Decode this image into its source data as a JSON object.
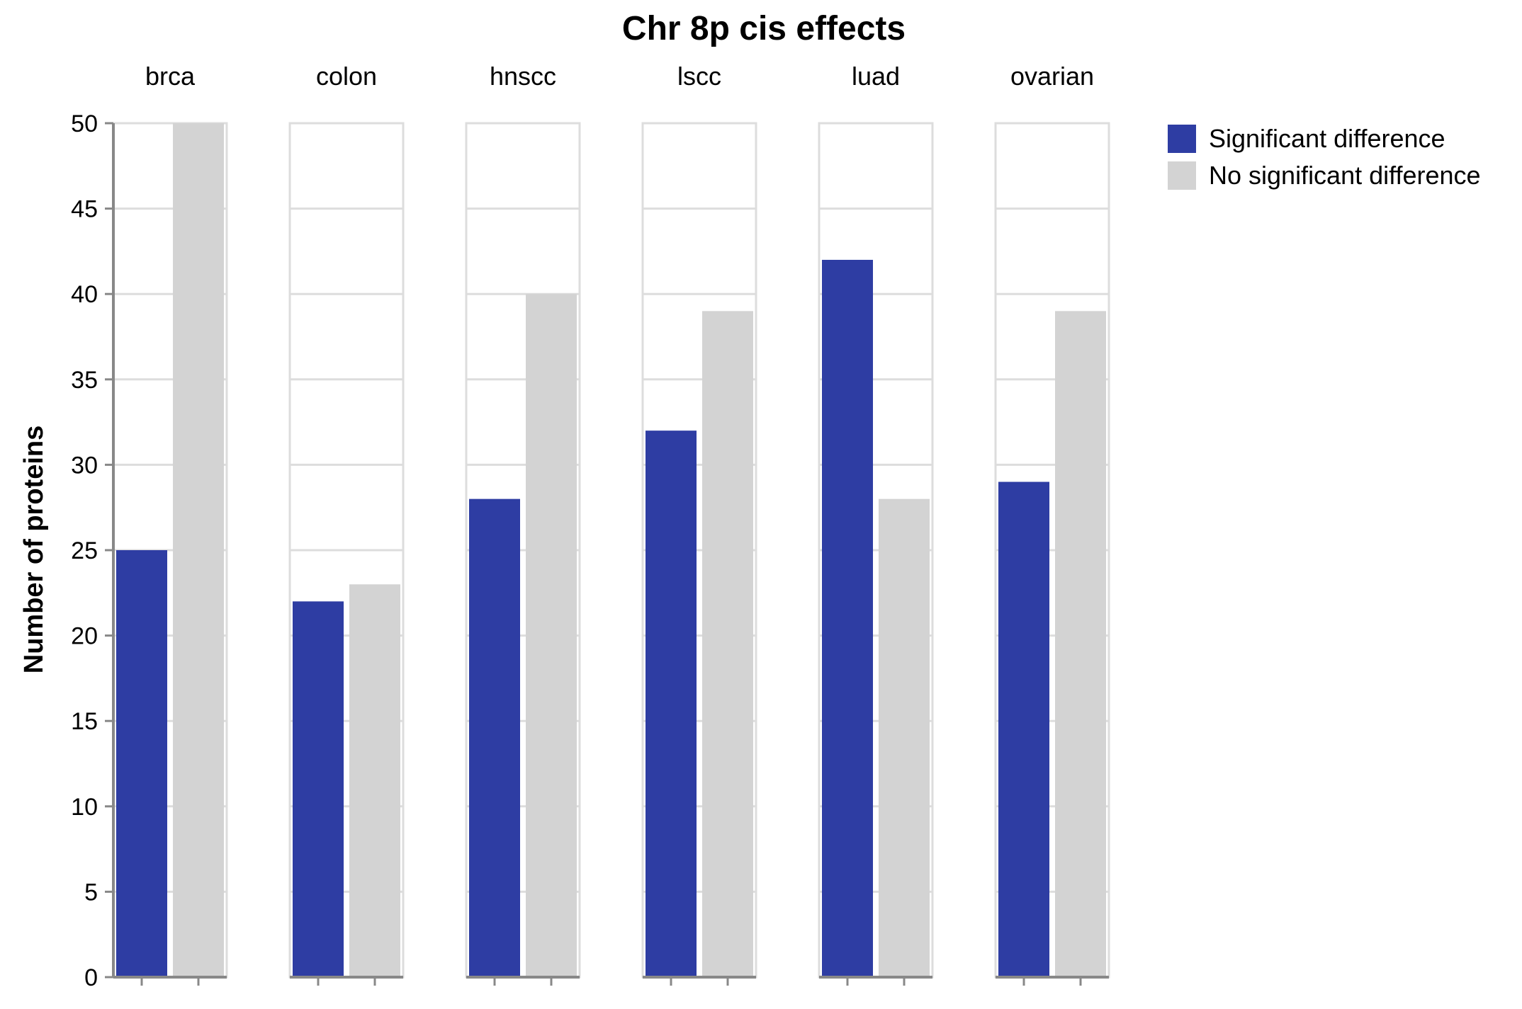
{
  "chart_data": {
    "type": "bar",
    "title": "Chr 8p cis effects",
    "ylabel": "Number of proteins",
    "xlabel": "",
    "ylim": [
      0,
      50
    ],
    "yticks": [
      0,
      5,
      10,
      15,
      20,
      25,
      30,
      35,
      40,
      45,
      50
    ],
    "grid": true,
    "legend_position": "top-right",
    "facets": [
      "brca",
      "colon",
      "hnscc",
      "lscc",
      "luad",
      "ovarian"
    ],
    "series": [
      {
        "name": "Significant difference",
        "color": "#2e3da3",
        "values": [
          25,
          22,
          28,
          32,
          42,
          29
        ]
      },
      {
        "name": "No significant difference",
        "color": "#d3d3d3",
        "values": [
          50,
          23,
          40,
          39,
          28,
          39
        ]
      }
    ]
  }
}
